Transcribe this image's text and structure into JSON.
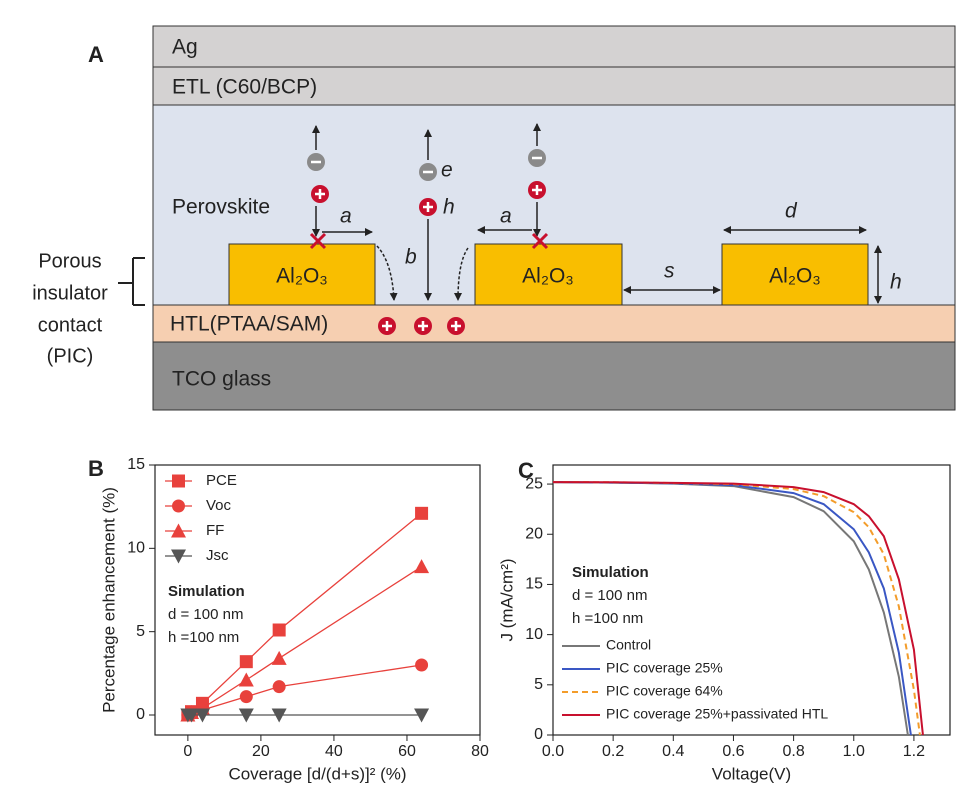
{
  "diagram": {
    "panel_label": "A",
    "layers": [
      "Ag",
      "ETL (C60/BCP)",
      "Perovskite",
      "HTL(PTAA/SAM)",
      "TCO glass"
    ],
    "blocks": [
      "Al₂O₃",
      "Al₂O₃",
      "Al₂O₃"
    ],
    "side_label": [
      "Porous",
      "insulator",
      "contact",
      "(PIC)"
    ],
    "symbols": [
      "a",
      "a",
      "b",
      "d",
      "s",
      "h",
      "e",
      "h"
    ]
  },
  "chart_data": [
    {
      "type": "line",
      "panel_label": "B",
      "x_label": "Coverage [d/(d+s)]² (%)",
      "y_label": "Percentage enhancement (%)",
      "annotations": [
        "Simulation",
        "d = 100 nm",
        "h =100 nm"
      ],
      "x": [
        0,
        1,
        4,
        16,
        25,
        64
      ],
      "series": [
        {
          "name": "PCE",
          "color": "#e8413c",
          "marker": "square",
          "values": [
            0,
            0.2,
            0.7,
            3.2,
            5.1,
            12.1
          ]
        },
        {
          "name": "Voc",
          "color": "#e8413c",
          "marker": "circle",
          "values": [
            0,
            0.1,
            0.3,
            1.1,
            1.7,
            3.0
          ]
        },
        {
          "name": "FF",
          "color": "#e8413c",
          "marker": "triangle-up",
          "values": [
            0,
            0.15,
            0.4,
            2.1,
            3.4,
            8.9
          ]
        },
        {
          "name": "Jsc",
          "color": "#555555",
          "marker": "triangle-down",
          "values": [
            0,
            0,
            0,
            0,
            0,
            0
          ]
        }
      ],
      "xlim": [
        -9,
        80
      ],
      "xticks": [
        0,
        20,
        40,
        60,
        80
      ],
      "ylim": [
        -1.2,
        15
      ],
      "yticks": [
        0,
        5,
        10,
        15
      ]
    },
    {
      "type": "line",
      "panel_label": "C",
      "x_label": "Voltage(V)",
      "y_label": "J (mA/cm²)",
      "annotations": [
        "Simulation",
        "d = 100 nm",
        "h =100 nm"
      ],
      "series": [
        {
          "name": "Control",
          "color": "#777777",
          "dash": false,
          "x": [
            0,
            0.2,
            0.4,
            0.6,
            0.8,
            0.9,
            1.0,
            1.05,
            1.1,
            1.15,
            1.18
          ],
          "values": [
            25.2,
            25.15,
            25.05,
            24.8,
            23.7,
            22.3,
            19.3,
            16.5,
            12.2,
            5.8,
            0
          ]
        },
        {
          "name": "PIC coverage 25%",
          "color": "#3a57c4",
          "dash": false,
          "x": [
            0,
            0.2,
            0.4,
            0.6,
            0.8,
            0.9,
            1.0,
            1.05,
            1.1,
            1.15,
            1.19
          ],
          "values": [
            25.2,
            25.15,
            25.07,
            24.9,
            24.1,
            23.0,
            20.5,
            18.2,
            14.6,
            8.2,
            0
          ]
        },
        {
          "name": "PIC coverage 64%",
          "color": "#f39c2a",
          "dash": true,
          "x": [
            0,
            0.2,
            0.4,
            0.6,
            0.8,
            0.9,
            1.0,
            1.05,
            1.1,
            1.15,
            1.2,
            1.22
          ],
          "values": [
            25.2,
            25.18,
            25.1,
            25.0,
            24.5,
            23.8,
            22.2,
            20.7,
            18.0,
            12.8,
            4.5,
            0
          ]
        },
        {
          "name": "PIC coverage 25%+passivated HTL",
          "color": "#c8102e",
          "dash": false,
          "x": [
            0,
            0.2,
            0.4,
            0.6,
            0.8,
            0.9,
            1.0,
            1.05,
            1.1,
            1.15,
            1.2,
            1.23
          ],
          "values": [
            25.2,
            25.18,
            25.12,
            25.05,
            24.7,
            24.2,
            23.0,
            21.8,
            19.8,
            15.5,
            8.5,
            0
          ]
        }
      ],
      "xlim": [
        0,
        1.32
      ],
      "xticks": [
        {
          "value": 0,
          "label": "0.0"
        },
        0.2,
        0.4,
        0.6,
        0.8,
        {
          "value": 1,
          "label": "1.0"
        },
        1.2
      ],
      "ylim": [
        0,
        26.9
      ],
      "yticks": [
        0,
        5,
        10,
        15,
        20,
        25
      ]
    }
  ]
}
